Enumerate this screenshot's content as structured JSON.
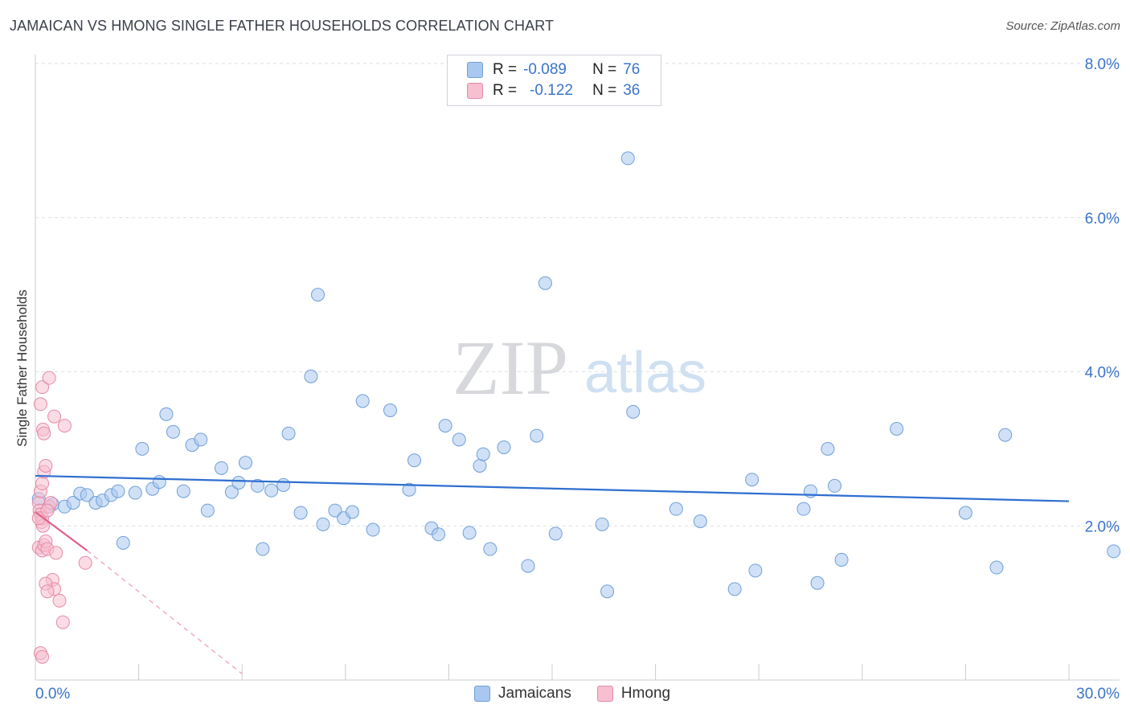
{
  "title": "JAMAICAN VS HMONG SINGLE FATHER HOUSEHOLDS CORRELATION CHART",
  "source": "Source: ZipAtlas.com",
  "watermark": {
    "zip": "ZIP",
    "atlas": "atlas"
  },
  "legend_top": [
    {
      "r_label": "R =",
      "r_value": "-0.089",
      "n_label": "N =",
      "n_value": "76",
      "color": "#a9c8f0",
      "border": "#6f9fd8"
    },
    {
      "r_label": "R =",
      "r_value": "-0.122",
      "n_label": "N =",
      "n_value": "36",
      "color": "#f7bfd0",
      "border": "#e58aa8"
    }
  ],
  "legend_bottom": [
    {
      "label": "Jamaicans",
      "color": "#a9c8f0",
      "border": "#6f9fd8"
    },
    {
      "label": "Hmong",
      "color": "#f7bfd0",
      "border": "#e58aa8"
    }
  ],
  "chart_data": {
    "type": "scatter",
    "title": "JAMAICAN VS HMONG SINGLE FATHER HOUSEHOLDS CORRELATION CHART",
    "xlabel": "",
    "ylabel": "Single Father Households",
    "xlim": [
      0,
      30
    ],
    "ylim": [
      0,
      8
    ],
    "x_tick_labels": [
      "0.0%",
      "30.0%"
    ],
    "y_ticks": [
      2,
      4,
      6,
      8
    ],
    "y_tick_labels": [
      "2.0%",
      "4.0%",
      "6.0%",
      "8.0%"
    ],
    "series": [
      {
        "name": "Jamaicans",
        "color": "#a9c8f0",
        "stroke": "#6f9fd8",
        "trend": {
          "x": [
            0,
            30
          ],
          "y": [
            2.65,
            2.32
          ],
          "color": "#2f6fd0"
        },
        "points": [
          [
            0.1,
            2.35
          ],
          [
            0.4,
            2.25
          ],
          [
            0.5,
            2.28
          ],
          [
            0.85,
            2.25
          ],
          [
            1.1,
            2.3
          ],
          [
            1.3,
            2.42
          ],
          [
            1.5,
            2.4
          ],
          [
            1.75,
            2.3
          ],
          [
            1.95,
            2.33
          ],
          [
            2.2,
            2.4
          ],
          [
            2.4,
            2.45
          ],
          [
            2.55,
            1.78
          ],
          [
            2.9,
            2.43
          ],
          [
            3.1,
            3.0
          ],
          [
            3.4,
            2.48
          ],
          [
            3.6,
            2.57
          ],
          [
            3.8,
            3.45
          ],
          [
            4.0,
            3.22
          ],
          [
            4.3,
            2.45
          ],
          [
            4.55,
            3.05
          ],
          [
            4.8,
            3.12
          ],
          [
            5.0,
            2.2
          ],
          [
            5.4,
            2.75
          ],
          [
            5.7,
            2.44
          ],
          [
            5.9,
            2.56
          ],
          [
            6.1,
            2.82
          ],
          [
            6.45,
            2.52
          ],
          [
            6.6,
            1.7
          ],
          [
            6.85,
            2.46
          ],
          [
            7.2,
            2.53
          ],
          [
            7.35,
            3.2
          ],
          [
            7.7,
            2.17
          ],
          [
            8.0,
            3.94
          ],
          [
            8.2,
            5.0
          ],
          [
            8.35,
            2.02
          ],
          [
            8.7,
            2.2
          ],
          [
            8.95,
            2.1
          ],
          [
            9.2,
            2.18
          ],
          [
            9.5,
            3.62
          ],
          [
            9.8,
            1.95
          ],
          [
            10.3,
            3.5
          ],
          [
            10.85,
            2.47
          ],
          [
            11.0,
            2.85
          ],
          [
            11.5,
            1.97
          ],
          [
            11.7,
            1.89
          ],
          [
            11.9,
            3.3
          ],
          [
            12.3,
            3.12
          ],
          [
            12.6,
            1.91
          ],
          [
            12.9,
            2.78
          ],
          [
            13.0,
            2.93
          ],
          [
            13.2,
            1.7
          ],
          [
            13.6,
            3.02
          ],
          [
            14.3,
            1.48
          ],
          [
            14.55,
            3.17
          ],
          [
            14.8,
            5.15
          ],
          [
            15.1,
            1.9
          ],
          [
            16.45,
            2.02
          ],
          [
            16.6,
            1.15
          ],
          [
            17.2,
            6.77
          ],
          [
            17.35,
            3.48
          ],
          [
            18.6,
            2.22
          ],
          [
            19.3,
            2.06
          ],
          [
            20.3,
            1.18
          ],
          [
            20.8,
            2.6
          ],
          [
            20.9,
            1.42
          ],
          [
            22.3,
            2.22
          ],
          [
            22.5,
            2.45
          ],
          [
            22.7,
            1.26
          ],
          [
            23.0,
            3.0
          ],
          [
            23.2,
            2.52
          ],
          [
            23.4,
            1.56
          ],
          [
            25.0,
            3.26
          ],
          [
            27.0,
            2.17
          ],
          [
            27.9,
            1.46
          ],
          [
            28.15,
            3.18
          ],
          [
            31.3,
            1.67
          ]
        ]
      },
      {
        "name": "Hmong",
        "color": "#f7bfd0",
        "stroke": "#e58aa8",
        "trend": {
          "x": [
            0,
            1.5
          ],
          "y": [
            2.18,
            1.68
          ],
          "color": "#e0608a"
        },
        "trend_ext": {
          "x": [
            1.5,
            6.0
          ],
          "y": [
            1.68,
            0.08
          ],
          "color": "#f0a6bf"
        },
        "points": [
          [
            0.1,
            2.3
          ],
          [
            0.12,
            2.2
          ],
          [
            0.15,
            2.15
          ],
          [
            0.18,
            2.05
          ],
          [
            0.2,
            2.1
          ],
          [
            0.22,
            2.0
          ],
          [
            0.1,
            1.72
          ],
          [
            0.2,
            1.68
          ],
          [
            0.25,
            1.75
          ],
          [
            0.3,
            1.8
          ],
          [
            0.35,
            1.7
          ],
          [
            0.4,
            2.25
          ],
          [
            0.45,
            2.3
          ],
          [
            0.15,
            2.45
          ],
          [
            0.2,
            2.55
          ],
          [
            0.25,
            2.7
          ],
          [
            0.3,
            2.78
          ],
          [
            0.15,
            3.58
          ],
          [
            0.2,
            3.8
          ],
          [
            0.22,
            3.25
          ],
          [
            0.25,
            3.2
          ],
          [
            0.4,
            3.92
          ],
          [
            0.55,
            3.42
          ],
          [
            0.85,
            3.3
          ],
          [
            0.6,
            1.65
          ],
          [
            0.5,
            1.3
          ],
          [
            0.55,
            1.18
          ],
          [
            0.7,
            1.03
          ],
          [
            0.3,
            1.25
          ],
          [
            0.35,
            1.15
          ],
          [
            0.8,
            0.75
          ],
          [
            1.45,
            1.52
          ],
          [
            0.15,
            0.35
          ],
          [
            0.2,
            0.3
          ],
          [
            0.1,
            2.1
          ],
          [
            0.35,
            2.2
          ]
        ]
      }
    ]
  }
}
